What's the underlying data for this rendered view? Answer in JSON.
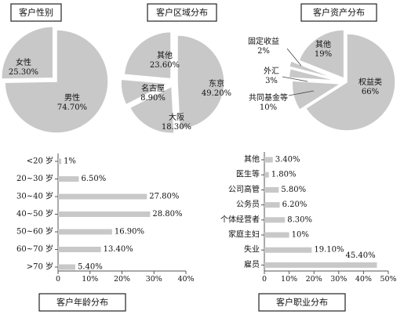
{
  "chart_data": [
    {
      "type": "pie",
      "title": "客户性别",
      "categories": [
        "男性",
        "女性"
      ],
      "values": [
        74.7,
        25.3
      ],
      "labels": [
        "74.70%",
        "25.30%"
      ]
    },
    {
      "type": "pie",
      "title": "客户区域分布",
      "categories": [
        "东京",
        "大阪",
        "名古屋",
        "其他"
      ],
      "values": [
        49.2,
        18.3,
        8.9,
        23.6
      ],
      "labels": [
        "49.20%",
        "18.30%",
        "8.90%",
        "23.60%"
      ]
    },
    {
      "type": "pie",
      "title": "客户资产分布",
      "categories": [
        "权益类",
        "共同基金等",
        "外汇",
        "固定收益",
        "其他"
      ],
      "values": [
        66,
        10,
        3,
        2,
        19
      ],
      "labels": [
        "66%",
        "10%",
        "3%",
        "2%",
        "19%"
      ]
    },
    {
      "type": "bar",
      "orientation": "horizontal",
      "title": "客户年龄分布",
      "categories": [
        "<20 岁",
        "20~30 岁",
        "30~40 岁",
        "40~50 岁",
        "50~60 岁",
        "60~70 岁",
        ">70 岁"
      ],
      "values": [
        1,
        6.5,
        27.8,
        28.8,
        16.9,
        13.4,
        5.4
      ],
      "labels": [
        "1%",
        "6.50%",
        "27.80%",
        "28.80%",
        "16.90%",
        "13.40%",
        "5.40%"
      ],
      "xlim": [
        0,
        40
      ],
      "xticks": [
        "0",
        "10%",
        "20%",
        "30%",
        "40%"
      ]
    },
    {
      "type": "bar",
      "orientation": "horizontal",
      "title": "客户职业分布",
      "categories": [
        "其他",
        "医生等",
        "公司高管",
        "公务员",
        "个体经营者",
        "家庭主妇",
        "失业",
        "雇员"
      ],
      "values": [
        3.4,
        1.8,
        5.8,
        6.2,
        8.3,
        10,
        19.1,
        45.4
      ],
      "labels": [
        "3.40%",
        "1.80%",
        "5.80%",
        "6.20%",
        "8.30%",
        "10%",
        "19.10%",
        "45.40%"
      ],
      "xlim": [
        0,
        50
      ],
      "xticks": [
        "0",
        "10%",
        "20%",
        "30%",
        "40%",
        "50%"
      ]
    }
  ],
  "colors": {
    "fill": "#c8c8c8",
    "text": "#111111"
  }
}
